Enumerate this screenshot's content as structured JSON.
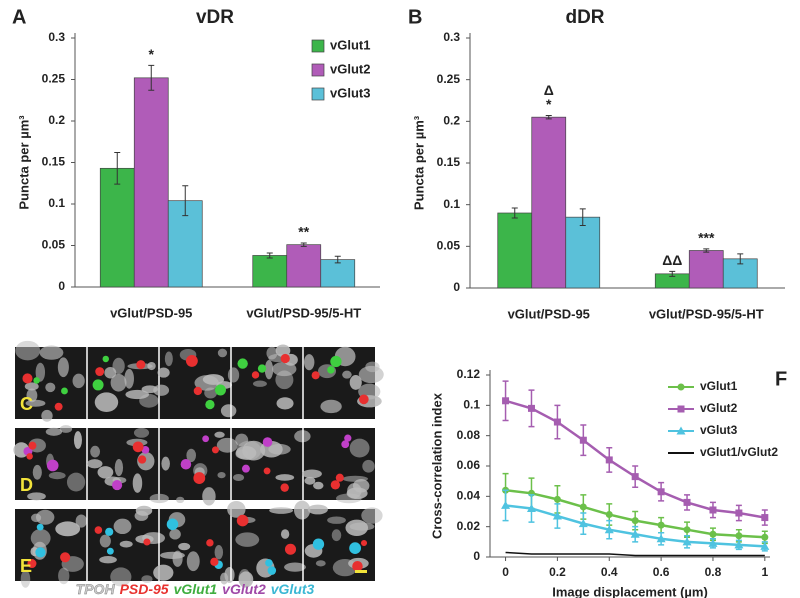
{
  "chart_data": [
    {
      "type": "bar",
      "panel": "A",
      "title": "vDR",
      "ylabel": "Puncta per µm³",
      "categories": [
        "vGlut/PSD-95",
        "vGlut/PSD-95/5-HT"
      ],
      "ylim": [
        0,
        0.3
      ],
      "yticks": [
        0,
        0.05,
        0.1,
        0.15,
        0.2,
        0.25,
        0.3
      ],
      "legend": "upper right",
      "series": [
        {
          "name": "vGlut1",
          "color": "#3cb54a",
          "values": [
            0.143,
            0.038
          ],
          "errors": [
            0.019,
            0.003
          ],
          "annotations": [
            null,
            null
          ]
        },
        {
          "name": "vGlut2",
          "color": "#b05cb8",
          "values": [
            0.252,
            0.051
          ],
          "errors": [
            0.015,
            0.002
          ],
          "annotations": [
            [
              "*"
            ],
            [
              "**"
            ]
          ]
        },
        {
          "name": "vGlut3",
          "color": "#5bc0d8",
          "values": [
            0.104,
            0.033
          ],
          "errors": [
            0.018,
            0.004
          ],
          "annotations": [
            null,
            null
          ]
        }
      ]
    },
    {
      "type": "bar",
      "panel": "B",
      "title": "dDR",
      "ylabel": "Puncta per µm³",
      "categories": [
        "vGlut/PSD-95",
        "vGlut/PSD-95/5-HT"
      ],
      "ylim": [
        0,
        0.3
      ],
      "yticks": [
        0,
        0.05,
        0.1,
        0.15,
        0.2,
        0.25,
        0.3
      ],
      "series": [
        {
          "color": "#3cb54a",
          "values": [
            0.09,
            0.017
          ],
          "errors": [
            0.006,
            0.003
          ],
          "annotations": [
            null,
            [
              "ΔΔ"
            ]
          ]
        },
        {
          "color": "#b05cb8",
          "values": [
            0.205,
            0.045
          ],
          "errors": [
            0.002,
            0.002
          ],
          "annotations": [
            [
              "Δ",
              "*"
            ],
            [
              "***"
            ]
          ]
        },
        {
          "color": "#5bc0d8",
          "values": [
            0.085,
            0.035
          ],
          "errors": [
            0.01,
            0.006
          ],
          "annotations": [
            null,
            null
          ]
        }
      ]
    },
    {
      "type": "line",
      "panel": "F",
      "xlabel": "Image displacement (µm)",
      "ylabel": "Cross-correlation index",
      "x": [
        0,
        0.1,
        0.2,
        0.3,
        0.4,
        0.5,
        0.6,
        0.7,
        0.8,
        0.9,
        1
      ],
      "xlim": [
        -0.06,
        1.02
      ],
      "xticks": [
        0,
        0.2,
        0.4,
        0.6,
        0.8,
        1
      ],
      "ylim": [
        0,
        0.12
      ],
      "yticks": [
        0,
        0.02,
        0.04,
        0.06,
        0.08,
        0.1,
        0.12
      ],
      "legend": "upper right",
      "series": [
        {
          "name": "vGlut1",
          "color": "#6cc04a",
          "marker": "circle",
          "values": [
            0.044,
            0.042,
            0.038,
            0.033,
            0.028,
            0.024,
            0.021,
            0.018,
            0.015,
            0.014,
            0.013
          ],
          "errors": [
            0.011,
            0.01,
            0.009,
            0.008,
            0.007,
            0.006,
            0.005,
            0.005,
            0.004,
            0.004,
            0.004
          ]
        },
        {
          "name": "vGlut2",
          "color": "#a55db0",
          "marker": "square",
          "values": [
            0.103,
            0.098,
            0.089,
            0.077,
            0.064,
            0.053,
            0.043,
            0.036,
            0.031,
            0.029,
            0.026
          ],
          "errors": [
            0.013,
            0.012,
            0.011,
            0.01,
            0.008,
            0.007,
            0.006,
            0.005,
            0.005,
            0.005,
            0.005
          ]
        },
        {
          "name": "vGlut3",
          "color": "#4fc3e0",
          "marker": "triangle",
          "values": [
            0.034,
            0.032,
            0.027,
            0.022,
            0.018,
            0.015,
            0.012,
            0.01,
            0.009,
            0.008,
            0.007
          ],
          "errors": [
            0.01,
            0.009,
            0.008,
            0.007,
            0.006,
            0.005,
            0.004,
            0.004,
            0.003,
            0.003,
            0.003
          ]
        },
        {
          "name": "vGlut1/vGlut2",
          "color": "#111111",
          "marker": "none",
          "values": [
            0.003,
            0.002,
            0.002,
            0.002,
            0.002,
            0.001,
            0.001,
            0.001,
            0.001,
            0.001,
            0.001
          ]
        }
      ]
    }
  ],
  "images": {
    "rows": [
      "C",
      "D",
      "E"
    ],
    "caption": [
      {
        "text": "TPOH",
        "color": "#cccccc"
      },
      {
        "text": "PSD-95",
        "color": "#e8322f"
      },
      {
        "text": "vGlut1",
        "color": "#3fae3f"
      },
      {
        "text": "vGlut2",
        "color": "#a04aa8"
      },
      {
        "text": "vGlut3",
        "color": "#3bb8d4"
      }
    ]
  }
}
